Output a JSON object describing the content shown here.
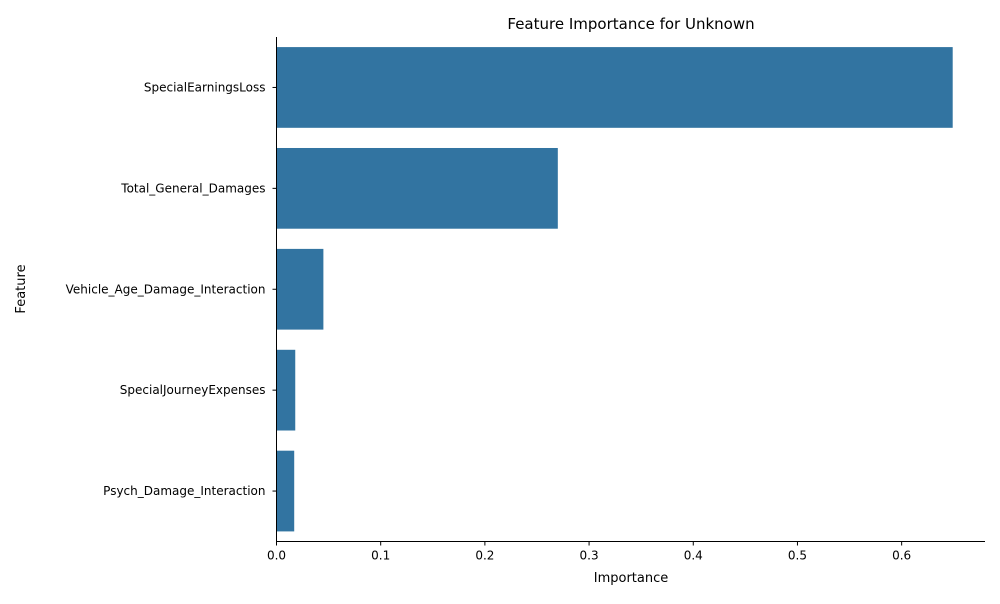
{
  "chart_data": {
    "type": "bar",
    "orientation": "horizontal",
    "title": "Feature Importance for Unknown",
    "xlabel": "Importance",
    "ylabel": "Feature",
    "categories": [
      "SpecialEarningsLoss",
      "Total_General_Damages",
      "Vehicle_Age_Damage_Interaction",
      "SpecialJourneyExpenses",
      "Psych_Damage_Interaction"
    ],
    "values": [
      0.649,
      0.27,
      0.045,
      0.018,
      0.017
    ],
    "xlim": [
      0,
      0.68
    ],
    "xticks": [
      "0.0",
      "0.1",
      "0.2",
      "0.3",
      "0.4",
      "0.5",
      "0.6"
    ],
    "grid": false,
    "legend": "none",
    "bar_color": "#3274a1"
  }
}
